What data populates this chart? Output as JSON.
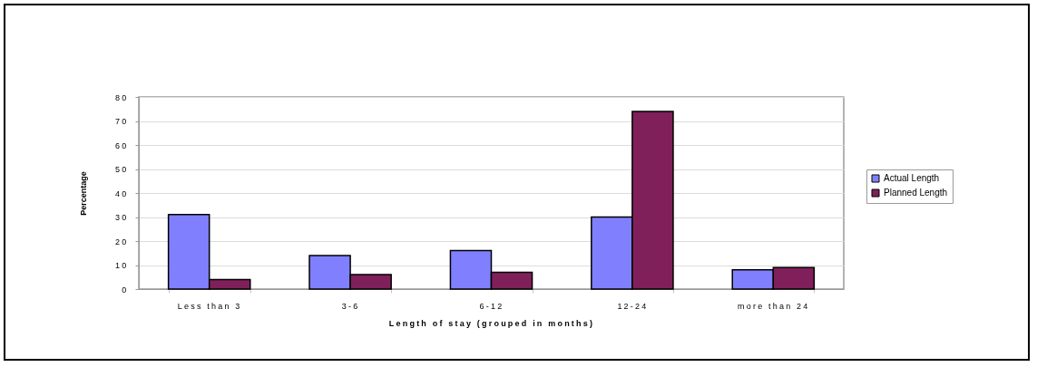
{
  "chart_data": {
    "type": "bar",
    "xlabel": "Length of stay (grouped in months)",
    "ylabel": "Percentage",
    "categories": [
      "Less than 3",
      "3-6",
      "6-12",
      "12-24",
      "more than 24"
    ],
    "series": [
      {
        "name": "Actual Length",
        "color": "#8080ff",
        "values": [
          31,
          14,
          16,
          30,
          8
        ]
      },
      {
        "name": "Planned Length",
        "color": "#80205a",
        "values": [
          4,
          6,
          7,
          74,
          9
        ]
      }
    ],
    "ylim": [
      0,
      80
    ],
    "yticks": [
      0,
      10,
      20,
      30,
      40,
      50,
      60,
      70,
      80
    ],
    "grid": "y",
    "legend": "right"
  }
}
